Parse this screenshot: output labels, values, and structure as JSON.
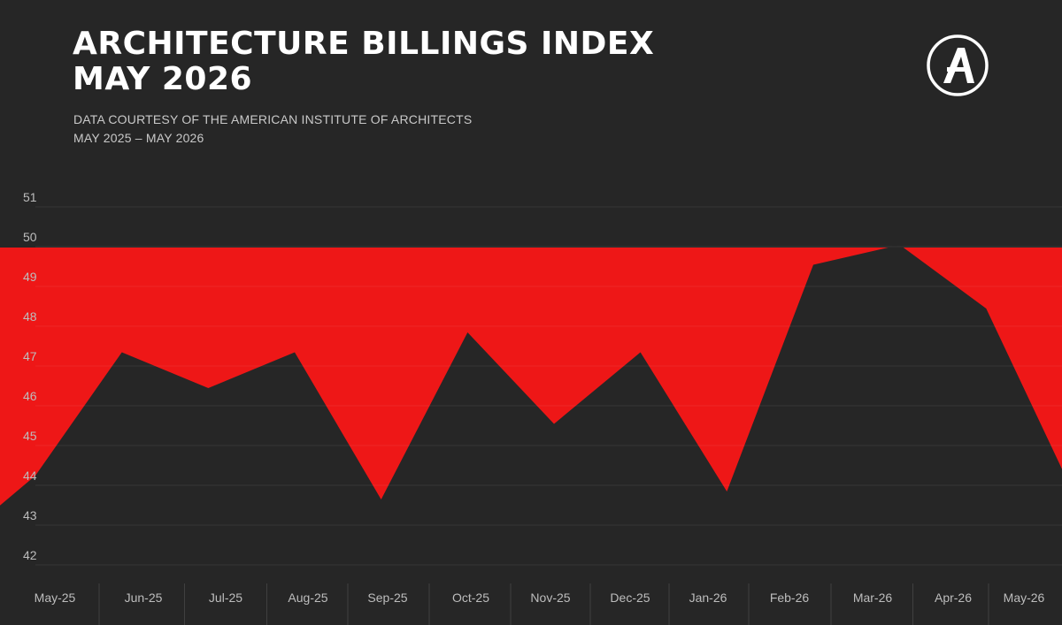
{
  "header": {
    "title_line1": "ARCHITECTURE BILLINGS INDEX",
    "title_line2": "MAY 2026",
    "subtitle_line1": "DATA COURTESY OF THE AMERICAN INSTITUTE OF ARCHITECTS",
    "subtitle_line2": "MAY 2025 – MAY 2026"
  },
  "logo": {
    "icon": "letter-a-circle-logo",
    "letter": "A"
  },
  "colors": {
    "background": "#262626",
    "fill_below_threshold": "#ee1717",
    "text": "#ffffff",
    "muted_text": "#bdbdbd"
  },
  "chart_data": {
    "type": "area",
    "categories": [
      "May-25",
      "Jun-25",
      "Jul-25",
      "Aug-25",
      "Sep-25",
      "Oct-25",
      "Nov-25",
      "Dec-25",
      "Jan-26",
      "Feb-26",
      "Mar-26",
      "Apr-26",
      "May-26"
    ],
    "values": [
      44.0,
      47.1,
      46.2,
      47.1,
      43.4,
      47.6,
      45.3,
      47.1,
      43.6,
      49.3,
      49.8,
      48.2,
      43.6
    ],
    "ylim": [
      42,
      51
    ],
    "yticks": [
      42,
      43,
      44,
      45,
      46,
      47,
      48,
      49,
      50,
      51
    ],
    "threshold": 50,
    "grid": true,
    "title": "",
    "xlabel": "",
    "ylabel": ""
  }
}
